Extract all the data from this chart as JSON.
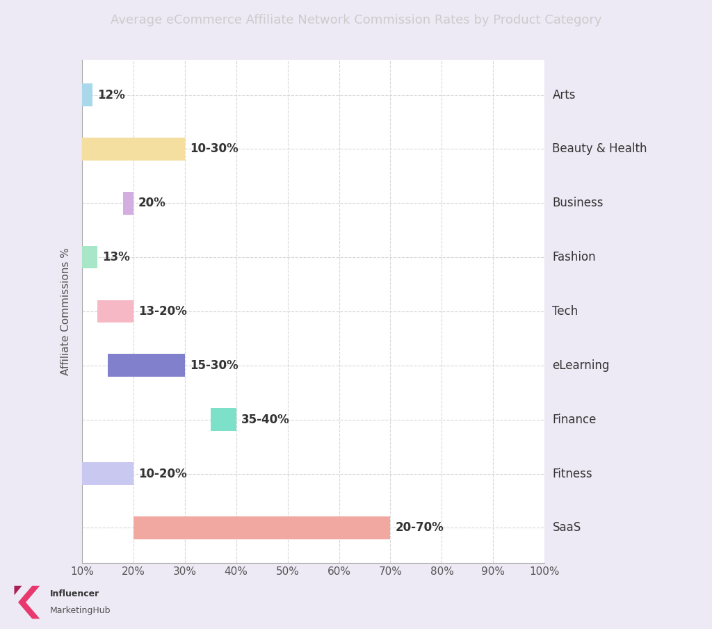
{
  "title": "Average eCommerce Affiliate Network Commission Rates by Product Category",
  "ylabel": "Affiliate Commissions %",
  "categories": [
    "Arts",
    "Beauty & Health",
    "Business",
    "Fashion",
    "Tech",
    "eLearning",
    "Finance",
    "Fitness",
    "SaaS"
  ],
  "bar_starts": [
    10,
    10,
    18,
    10,
    13,
    15,
    35,
    10,
    20
  ],
  "bar_ends": [
    12,
    30,
    20,
    13,
    20,
    30,
    40,
    20,
    70
  ],
  "bar_labels": [
    "12%",
    "10-30%",
    "20%",
    "13%",
    "13-20%",
    "15-30%",
    "35-40%",
    "10-20%",
    "20-70%"
  ],
  "bar_colors": [
    "#a8d8ea",
    "#f5dfa0",
    "#d4aee0",
    "#a8e6c8",
    "#f5b8c4",
    "#8080cc",
    "#7de0c8",
    "#c8c8f0",
    "#f0a8a0"
  ],
  "xlim": [
    10,
    100
  ],
  "xticks": [
    10,
    20,
    30,
    40,
    50,
    60,
    70,
    80,
    90,
    100
  ],
  "figure_bg": "#edeaf5",
  "title_bar_color": "#1a1a1a",
  "title_text_color": "#cccccc",
  "plot_bg_color": "#ffffff",
  "grid_color": "#d8d8d8",
  "label_fontsize": 12,
  "title_fontsize": 13,
  "tick_fontsize": 11,
  "ylabel_fontsize": 11,
  "cat_fontsize": 12
}
